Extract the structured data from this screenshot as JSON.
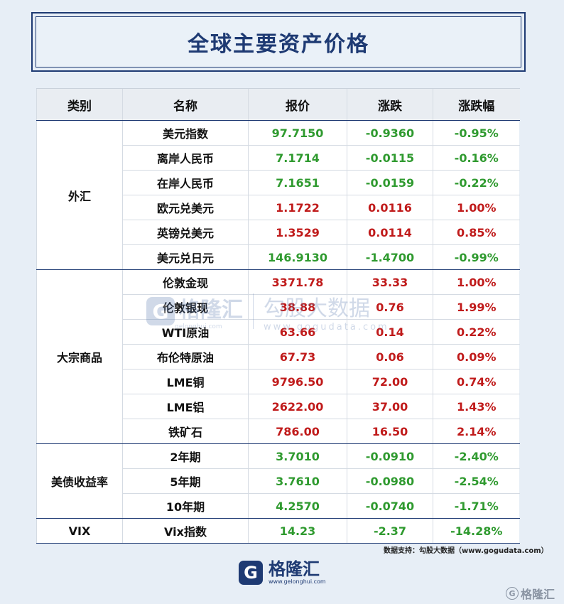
{
  "title": "全球主要资产价格",
  "headers": [
    "类别",
    "名称",
    "报价",
    "涨跌",
    "涨跌幅"
  ],
  "groups": [
    {
      "category": "外汇",
      "rows": [
        {
          "name": "美元指数",
          "price": "97.7150",
          "change": "-0.9360",
          "pct": "-0.95%",
          "dir": "down"
        },
        {
          "name": "离岸人民币",
          "price": "7.1714",
          "change": "-0.0115",
          "pct": "-0.16%",
          "dir": "down"
        },
        {
          "name": "在岸人民币",
          "price": "7.1651",
          "change": "-0.0159",
          "pct": "-0.22%",
          "dir": "down"
        },
        {
          "name": "欧元兑美元",
          "price": "1.1722",
          "change": "0.0116",
          "pct": "1.00%",
          "dir": "up"
        },
        {
          "name": "英镑兑美元",
          "price": "1.3529",
          "change": "0.0114",
          "pct": "0.85%",
          "dir": "up"
        },
        {
          "name": "美元兑日元",
          "price": "146.9130",
          "change": "-1.4700",
          "pct": "-0.99%",
          "dir": "down"
        }
      ]
    },
    {
      "category": "大宗商品",
      "rows": [
        {
          "name": "伦敦金现",
          "price": "3371.78",
          "change": "33.33",
          "pct": "1.00%",
          "dir": "up"
        },
        {
          "name": "伦敦银现",
          "price": "38.88",
          "change": "0.76",
          "pct": "1.99%",
          "dir": "up"
        },
        {
          "name": "WTI原油",
          "price": "63.66",
          "change": "0.14",
          "pct": "0.22%",
          "dir": "up"
        },
        {
          "name": "布伦特原油",
          "price": "67.73",
          "change": "0.06",
          "pct": "0.09%",
          "dir": "up"
        },
        {
          "name": "LME铜",
          "price": "9796.50",
          "change": "72.00",
          "pct": "0.74%",
          "dir": "up"
        },
        {
          "name": "LME铝",
          "price": "2622.00",
          "change": "37.00",
          "pct": "1.43%",
          "dir": "up"
        },
        {
          "name": "铁矿石",
          "price": "786.00",
          "change": "16.50",
          "pct": "2.14%",
          "dir": "up"
        }
      ]
    },
    {
      "category": "美债收益率",
      "rows": [
        {
          "name": "2年期",
          "price": "3.7010",
          "change": "-0.0910",
          "pct": "-2.40%",
          "dir": "down"
        },
        {
          "name": "5年期",
          "price": "3.7610",
          "change": "-0.0980",
          "pct": "-2.54%",
          "dir": "down"
        },
        {
          "name": "10年期",
          "price": "4.2570",
          "change": "-0.0740",
          "pct": "-1.71%",
          "dir": "down"
        }
      ]
    },
    {
      "category": "VIX",
      "rows": [
        {
          "name": "Vix指数",
          "price": "14.23",
          "change": "-2.37",
          "pct": "-14.28%",
          "dir": "down"
        }
      ]
    }
  ],
  "source": "数据支持：勾股大数据（www.gogudata.com）",
  "watermark": {
    "brand": "格隆汇",
    "brand_url": "gelonghui.com",
    "right": "勾股大数据",
    "right_url": "www.gogudata.com"
  },
  "footer": {
    "brand": "格隆汇",
    "url": "www.gelonghui.com",
    "corner": "格隆汇",
    "logo_letter": "G"
  },
  "colors": {
    "up": "#c01b1b",
    "down": "#2f9a2f",
    "accent": "#1e3a73"
  }
}
